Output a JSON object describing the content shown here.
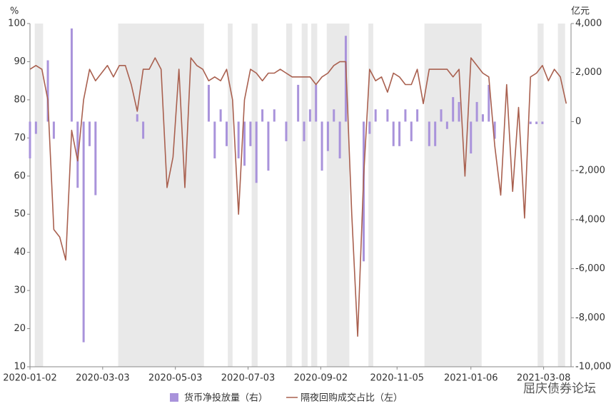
{
  "chart_data": {
    "type": "bar-line",
    "ylabel": "%",
    "y2label": "亿元",
    "watermark": "屈庆债券论坛",
    "xlim": [
      "2020-01-02",
      "2021-03-31"
    ],
    "xticks": [
      "2020-01-02",
      "2020-03-03",
      "2020-05-03",
      "2020-07-03",
      "2020-09-02",
      "2020-11-05",
      "2021-01-06",
      "2021-03-08"
    ],
    "ylim": [
      10,
      100
    ],
    "yticks": [
      10,
      20,
      30,
      40,
      50,
      60,
      70,
      80,
      90,
      100
    ],
    "y2lim": [
      -10000,
      4000
    ],
    "y2ticks": [
      {
        "value": -10000,
        "label": "-10,000"
      },
      {
        "value": -8000,
        "label": "-8,000"
      },
      {
        "value": -6000,
        "label": "-6,000"
      },
      {
        "value": -4000,
        "label": "-4,000"
      },
      {
        "value": -2000,
        "label": "-2,000"
      },
      0,
      {
        "value": 2000,
        "label": "2,000"
      },
      {
        "value": 4000,
        "label": "4,000"
      }
    ],
    "shaded_ranges": [
      [
        "2020-01-06",
        "2020-01-13"
      ],
      [
        "2020-03-16",
        "2020-05-27"
      ],
      [
        "2020-06-16",
        "2020-06-20"
      ],
      [
        "2020-07-06",
        "2020-07-11"
      ],
      [
        "2020-08-04",
        "2020-08-09"
      ],
      [
        "2020-08-17",
        "2020-08-22"
      ],
      [
        "2020-08-25",
        "2020-08-30"
      ],
      [
        "2020-09-07",
        "2020-09-26"
      ],
      [
        "2020-10-12",
        "2020-10-16"
      ],
      [
        "2020-11-28",
        "2021-01-15"
      ],
      [
        "2021-03-03",
        "2021-03-08"
      ],
      [
        "2021-03-20",
        "2021-03-26"
      ]
    ],
    "shade_color": "#e9e9e9",
    "x": [
      "2020-01-02",
      "2020-01-07",
      "2020-01-12",
      "2020-01-17",
      "2020-01-22",
      "2020-01-27",
      "2020-02-01",
      "2020-02-06",
      "2020-02-11",
      "2020-02-16",
      "2020-02-21",
      "2020-02-26",
      "2020-03-02",
      "2020-03-07",
      "2020-03-12",
      "2020-03-17",
      "2020-03-22",
      "2020-03-27",
      "2020-04-01",
      "2020-04-06",
      "2020-04-11",
      "2020-04-16",
      "2020-04-21",
      "2020-04-26",
      "2020-05-01",
      "2020-05-06",
      "2020-05-11",
      "2020-05-16",
      "2020-05-21",
      "2020-05-26",
      "2020-05-31",
      "2020-06-05",
      "2020-06-10",
      "2020-06-15",
      "2020-06-20",
      "2020-06-25",
      "2020-06-30",
      "2020-07-05",
      "2020-07-10",
      "2020-07-15",
      "2020-07-20",
      "2020-07-25",
      "2020-07-30",
      "2020-08-04",
      "2020-08-09",
      "2020-08-14",
      "2020-08-19",
      "2020-08-24",
      "2020-08-29",
      "2020-09-03",
      "2020-09-08",
      "2020-09-13",
      "2020-09-18",
      "2020-09-23",
      "2020-09-28",
      "2020-10-03",
      "2020-10-08",
      "2020-10-13",
      "2020-10-18",
      "2020-10-23",
      "2020-10-28",
      "2020-11-02",
      "2020-11-07",
      "2020-11-12",
      "2020-11-17",
      "2020-11-22",
      "2020-11-27",
      "2020-12-02",
      "2020-12-07",
      "2020-12-12",
      "2020-12-17",
      "2020-12-22",
      "2020-12-27",
      "2021-01-01",
      "2021-01-06",
      "2021-01-11",
      "2021-01-16",
      "2021-01-21",
      "2021-01-26",
      "2021-01-31",
      "2021-02-05",
      "2021-02-10",
      "2021-02-15",
      "2021-02-20",
      "2021-02-25",
      "2021-03-02",
      "2021-03-07",
      "2021-03-12",
      "2021-03-17",
      "2021-03-22",
      "2021-03-27"
    ],
    "series": [
      {
        "name": "货币净投放量（右）",
        "type": "bar",
        "axis": "y2",
        "color": "#a993db",
        "values": [
          -1500,
          -500,
          0,
          2500,
          -700,
          0,
          0,
          3800,
          -2700,
          -9000,
          -1000,
          -3000,
          0,
          0,
          0,
          0,
          0,
          0,
          300,
          -700,
          0,
          0,
          0,
          0,
          0,
          0,
          0,
          0,
          0,
          0,
          1500,
          -1500,
          500,
          -1000,
          0,
          -1500,
          -1800,
          -1000,
          -2500,
          500,
          -2000,
          500,
          0,
          -800,
          0,
          1500,
          -800,
          500,
          1500,
          -2000,
          -1200,
          500,
          -1500,
          3500,
          0,
          0,
          -5700,
          -500,
          500,
          0,
          500,
          -1000,
          -1000,
          500,
          -800,
          500,
          0,
          -1000,
          -1000,
          500,
          -300,
          1000,
          800,
          0,
          -1300,
          800,
          300,
          1500,
          -700,
          0,
          0,
          0,
          0,
          0,
          -100,
          -100,
          -100,
          0,
          0,
          0,
          0
        ]
      },
      {
        "name": "隔夜回购成交占比（左）",
        "type": "line",
        "axis": "y",
        "color": "#a9604f",
        "values": [
          88,
          89,
          88,
          80,
          46,
          44,
          38,
          72,
          64,
          80,
          88,
          85,
          87,
          89,
          86,
          89,
          89,
          84,
          77,
          88,
          88,
          91,
          88,
          57,
          65,
          88,
          57,
          91,
          89,
          88,
          85,
          86,
          85,
          88,
          80,
          50,
          80,
          88,
          87,
          85,
          87,
          87,
          88,
          87,
          86,
          86,
          86,
          86,
          84,
          86,
          87,
          89,
          90,
          90,
          50,
          18,
          60,
          88,
          85,
          86,
          82,
          87,
          86,
          84,
          84,
          88,
          79,
          88,
          88,
          88,
          88,
          86,
          88,
          60,
          91,
          89,
          87,
          86,
          68,
          55,
          84,
          56,
          78,
          49,
          86,
          87,
          89,
          85,
          88,
          86,
          79
        ]
      }
    ]
  }
}
